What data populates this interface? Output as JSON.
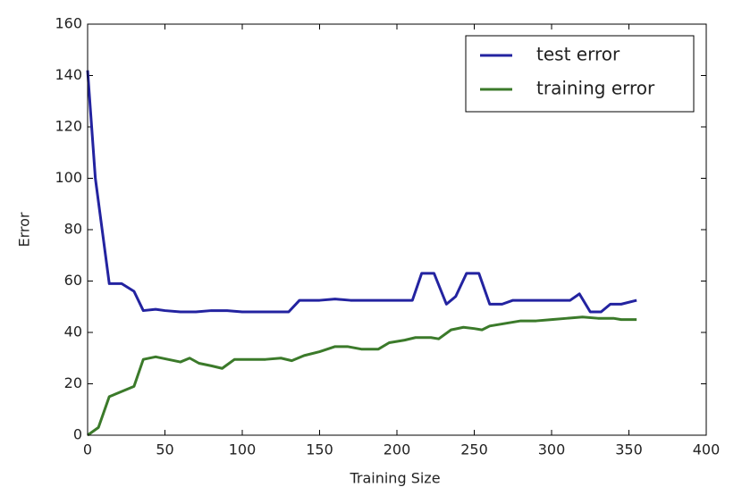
{
  "chart_data": {
    "type": "line",
    "xlabel": "Training Size",
    "ylabel": "Error",
    "xlim": [
      0,
      400
    ],
    "xticks": [
      0,
      50,
      100,
      150,
      200,
      250,
      300,
      350,
      400
    ],
    "ylim": [
      0,
      160
    ],
    "yticks": [
      0,
      20,
      40,
      60,
      80,
      100,
      120,
      140,
      160
    ],
    "legend": "upper right",
    "series": [
      {
        "name": "test error",
        "color": "#2323a0",
        "x": [
          0,
          5,
          14,
          22,
          30,
          36,
          44,
          50,
          60,
          70,
          80,
          90,
          100,
          110,
          120,
          130,
          137,
          150,
          160,
          170,
          180,
          190,
          200,
          210,
          216,
          224,
          232,
          238,
          245,
          253,
          260,
          268,
          275,
          290,
          300,
          312,
          318,
          325,
          332,
          338,
          345,
          355
        ],
        "values": [
          142,
          100,
          59,
          59,
          56,
          48.5,
          49,
          48.5,
          48,
          48,
          48.5,
          48.5,
          48,
          48,
          48,
          48,
          52.5,
          52.5,
          53,
          52.5,
          52.5,
          52.5,
          52.5,
          52.5,
          63,
          63,
          51,
          54,
          63,
          63,
          51,
          51,
          52.5,
          52.5,
          52.5,
          52.5,
          55,
          48,
          48,
          51,
          51,
          52.5
        ]
      },
      {
        "name": "training error",
        "color": "#3b7a2a",
        "x": [
          0,
          7,
          14,
          22,
          30,
          36,
          44,
          52,
          60,
          66,
          72,
          80,
          87,
          95,
          105,
          115,
          125,
          132,
          140,
          150,
          160,
          168,
          177,
          188,
          195,
          205,
          212,
          222,
          227,
          235,
          243,
          250,
          255,
          260,
          270,
          280,
          290,
          300,
          310,
          320,
          330,
          340,
          345,
          355
        ],
        "values": [
          0,
          3,
          15,
          17,
          19,
          29.5,
          30.5,
          29.5,
          28.5,
          30,
          28,
          27,
          26,
          29.5,
          29.5,
          29.5,
          30,
          29,
          31,
          32.5,
          34.5,
          34.5,
          33.5,
          33.5,
          36,
          37,
          38,
          38,
          37.5,
          41,
          42,
          41.5,
          41,
          42.5,
          43.5,
          44.5,
          44.5,
          45,
          45.5,
          46,
          45.5,
          45.5,
          45,
          45
        ]
      }
    ]
  }
}
